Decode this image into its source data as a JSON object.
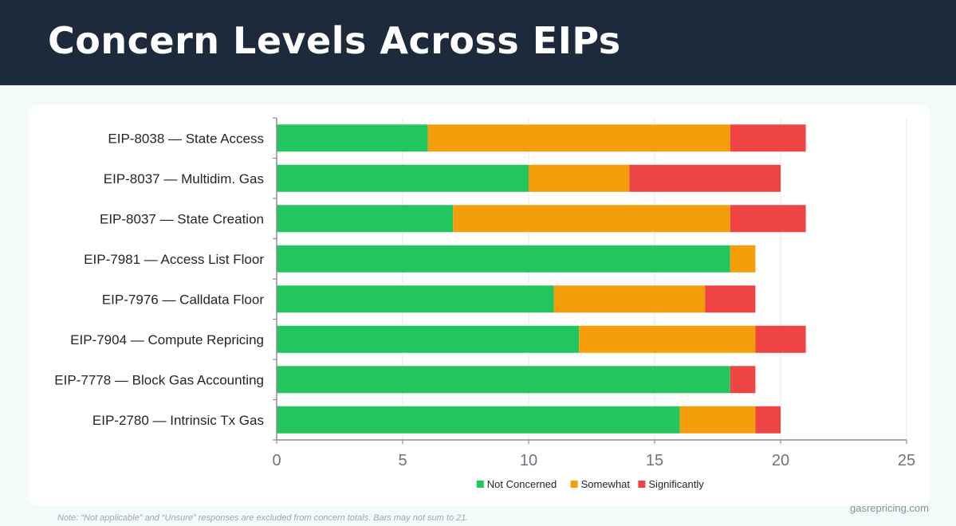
{
  "header": {
    "title": "Concern Levels Across EIPs"
  },
  "chart_data": {
    "type": "bar",
    "orientation": "horizontal",
    "stacked": true,
    "title": "Concern Levels Across EIPs",
    "xlabel": "",
    "ylabel": "",
    "xlim": [
      0,
      25
    ],
    "xticks": [
      0,
      5,
      10,
      15,
      20,
      25
    ],
    "grid": true,
    "legend": "bottom-center",
    "categories": [
      "EIP-8038 — State Access",
      "EIP-8037 — Multidim. Gas",
      "EIP-8037 — State Creation",
      "EIP-7981 — Access List Floor",
      "EIP-7976 — Calldata Floor",
      "EIP-7904 — Compute Repricing",
      "EIP-7778 — Block Gas Accounting",
      "EIP-2780 — Intrinsic Tx Gas"
    ],
    "series": [
      {
        "name": "Not Concerned",
        "color": "#22c55e",
        "values": [
          6,
          10,
          7,
          18,
          11,
          12,
          18,
          16
        ]
      },
      {
        "name": "Somewhat",
        "color": "#f59e0b",
        "values": [
          12,
          4,
          11,
          1,
          6,
          7,
          0,
          3
        ]
      },
      {
        "name": "Significantly",
        "color": "#ef4444",
        "values": [
          3,
          6,
          3,
          0,
          2,
          2,
          1,
          1
        ]
      }
    ]
  },
  "footer": {
    "note": "Note: “Not applicable” and “Unsure” responses are excluded from concern totals. Bars may not sum to 21.",
    "brand": "gasrepricing.com"
  }
}
